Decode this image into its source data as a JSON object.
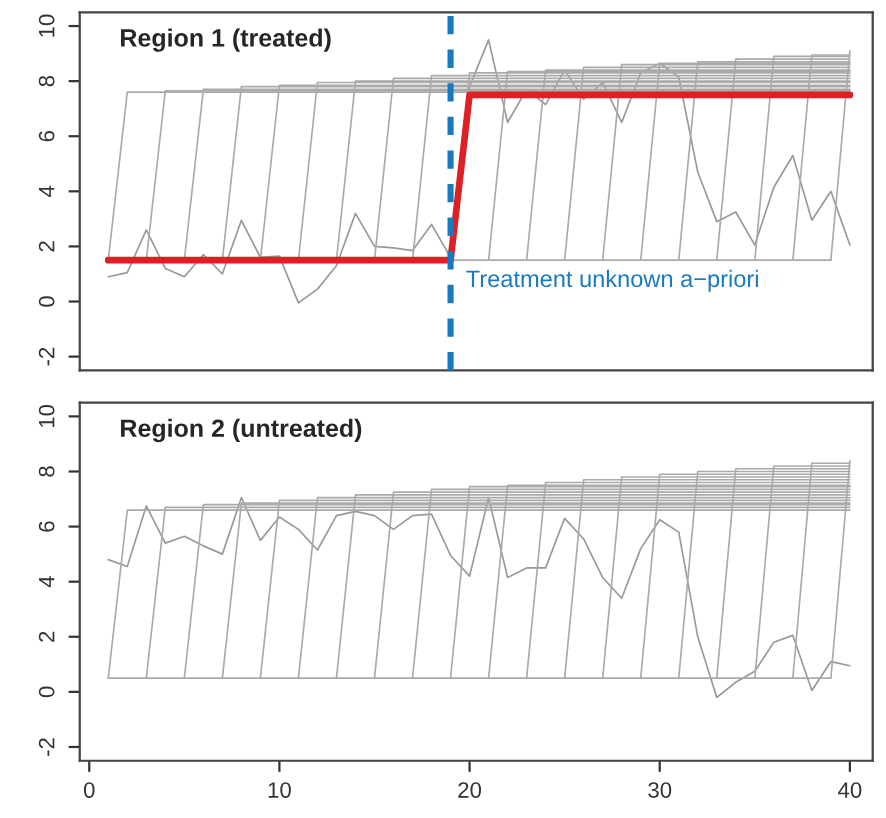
{
  "chart_data": [
    {
      "type": "line",
      "title": "Region 1 (treated)",
      "xlim": [
        -0.5,
        41.2
      ],
      "ylim": [
        -2.5,
        10.5
      ],
      "xticks": [
        0,
        10,
        20,
        30,
        40
      ],
      "yticks": [
        -2,
        0,
        2,
        4,
        6,
        8,
        10
      ],
      "tick_labels": "y",
      "grid": false,
      "line_style": "solid",
      "marker": "none",
      "series": [
        {
          "color": "#999999",
          "x": [
            1,
            2,
            3,
            4,
            5,
            6,
            7,
            8,
            9,
            10,
            11,
            12,
            13,
            14,
            15,
            16,
            17,
            18,
            19,
            20,
            21,
            22,
            23,
            24,
            25,
            26,
            27,
            28,
            29,
            30,
            31,
            32,
            33,
            34,
            35,
            36,
            37,
            38,
            39,
            40
          ],
          "values": [
            0.9,
            1.05,
            2.6,
            1.2,
            0.9,
            1.7,
            1.0,
            2.95,
            1.6,
            1.65,
            -0.05,
            0.45,
            1.3,
            3.2,
            2.0,
            1.95,
            1.85,
            2.8,
            1.6,
            7.8,
            9.5,
            6.5,
            7.7,
            7.15,
            8.4,
            7.35,
            7.95,
            6.5,
            8.3,
            8.65,
            8.15,
            4.7,
            2.9,
            3.25,
            2.05,
            4.15,
            5.3,
            2.95,
            4.0,
            2.05
          ]
        },
        {
          "color": "#aaaaaa",
          "x": [
            1,
            39
          ],
          "values": [
            1.5,
            1.5
          ]
        },
        {
          "color": "#aaaaaa",
          "x": [
            1,
            2,
            40
          ],
          "values": [
            1.5,
            7.6,
            7.6
          ]
        },
        {
          "color": "#aaaaaa",
          "x": [
            3,
            4,
            40
          ],
          "values": [
            1.5,
            7.65,
            7.65
          ]
        },
        {
          "color": "#aaaaaa",
          "x": [
            5,
            6,
            40
          ],
          "values": [
            1.5,
            7.7,
            7.7
          ]
        },
        {
          "color": "#aaaaaa",
          "x": [
            7,
            8,
            40
          ],
          "values": [
            1.5,
            7.8,
            7.8
          ]
        },
        {
          "color": "#aaaaaa",
          "x": [
            9,
            10,
            40
          ],
          "values": [
            1.5,
            7.85,
            7.85
          ]
        },
        {
          "color": "#aaaaaa",
          "x": [
            11,
            12,
            40
          ],
          "values": [
            1.5,
            7.95,
            7.95
          ]
        },
        {
          "color": "#aaaaaa",
          "x": [
            13,
            14,
            40
          ],
          "values": [
            1.5,
            8.0,
            8.0
          ]
        },
        {
          "color": "#aaaaaa",
          "x": [
            15,
            16,
            40
          ],
          "values": [
            1.5,
            8.1,
            8.1
          ]
        },
        {
          "color": "#aaaaaa",
          "x": [
            17,
            18,
            40
          ],
          "values": [
            1.5,
            8.2,
            8.2
          ]
        },
        {
          "color": "#aaaaaa",
          "x": [
            19,
            20,
            40
          ],
          "values": [
            1.5,
            8.3,
            8.3
          ]
        },
        {
          "color": "#aaaaaa",
          "x": [
            21,
            22,
            40
          ],
          "values": [
            1.5,
            8.35,
            8.35
          ]
        },
        {
          "color": "#aaaaaa",
          "x": [
            23,
            24,
            40
          ],
          "values": [
            1.5,
            8.4,
            8.4
          ]
        },
        {
          "color": "#aaaaaa",
          "x": [
            25,
            26,
            40
          ],
          "values": [
            1.5,
            8.5,
            8.5
          ]
        },
        {
          "color": "#aaaaaa",
          "x": [
            27,
            28,
            40
          ],
          "values": [
            1.5,
            8.6,
            8.6
          ]
        },
        {
          "color": "#aaaaaa",
          "x": [
            29,
            30,
            40
          ],
          "values": [
            1.5,
            8.65,
            8.65
          ]
        },
        {
          "color": "#aaaaaa",
          "x": [
            31,
            32,
            40
          ],
          "values": [
            1.5,
            8.7,
            8.7
          ]
        },
        {
          "color": "#aaaaaa",
          "x": [
            33,
            34,
            40
          ],
          "values": [
            1.5,
            8.8,
            8.8
          ]
        },
        {
          "color": "#aaaaaa",
          "x": [
            35,
            36,
            40
          ],
          "values": [
            1.5,
            8.9,
            8.9
          ]
        },
        {
          "color": "#aaaaaa",
          "x": [
            37,
            38,
            40
          ],
          "values": [
            1.5,
            8.95,
            8.95
          ]
        },
        {
          "color": "#aaaaaa",
          "x": [
            39,
            40
          ],
          "values": [
            1.5,
            9.1
          ]
        },
        {
          "color": "#dd1f26",
          "x": [
            1,
            19,
            20,
            40
          ],
          "values": [
            1.5,
            1.5,
            7.5,
            7.5
          ]
        }
      ],
      "ref_lines": [
        {
          "axis": "x",
          "value": 19,
          "label": "Treatment unknown a−priori",
          "color": "#1a7abf",
          "line_style": "dashed"
        }
      ]
    },
    {
      "type": "line",
      "title": "Region 2 (untreated)",
      "xlim": [
        -0.5,
        41.2
      ],
      "ylim": [
        -2.5,
        10.5
      ],
      "xticks": [
        0,
        10,
        20,
        30,
        40
      ],
      "yticks": [
        -2,
        0,
        2,
        4,
        6,
        8,
        10
      ],
      "grid": false,
      "line_style": "solid",
      "marker": "none",
      "series": [
        {
          "color": "#999999",
          "x": [
            1,
            2,
            3,
            4,
            5,
            6,
            7,
            8,
            9,
            10,
            11,
            12,
            13,
            14,
            15,
            16,
            17,
            18,
            19,
            20,
            21,
            22,
            23,
            24,
            25,
            26,
            27,
            28,
            29,
            30,
            31,
            32,
            33,
            34,
            35,
            36,
            37,
            38,
            39,
            40
          ],
          "values": [
            4.8,
            4.55,
            6.75,
            5.4,
            5.65,
            5.3,
            5.0,
            7.05,
            5.5,
            6.35,
            5.9,
            5.15,
            6.4,
            6.55,
            6.4,
            5.9,
            6.4,
            6.45,
            4.95,
            4.2,
            7.05,
            4.15,
            4.5,
            4.5,
            6.3,
            5.55,
            4.15,
            3.4,
            5.2,
            6.25,
            5.8,
            2.0,
            -0.2,
            0.35,
            0.75,
            1.8,
            2.05,
            0.05,
            1.1,
            0.95
          ]
        },
        {
          "color": "#aaaaaa",
          "x": [
            1,
            39
          ],
          "values": [
            0.5,
            0.5
          ]
        },
        {
          "color": "#aaaaaa",
          "x": [
            1,
            2,
            40
          ],
          "values": [
            0.5,
            6.6,
            6.6
          ]
        },
        {
          "color": "#aaaaaa",
          "x": [
            3,
            4,
            40
          ],
          "values": [
            0.5,
            6.7,
            6.7
          ]
        },
        {
          "color": "#aaaaaa",
          "x": [
            5,
            6,
            40
          ],
          "values": [
            0.5,
            6.8,
            6.8
          ]
        },
        {
          "color": "#aaaaaa",
          "x": [
            7,
            8,
            40
          ],
          "values": [
            0.5,
            6.85,
            6.85
          ]
        },
        {
          "color": "#aaaaaa",
          "x": [
            9,
            10,
            40
          ],
          "values": [
            0.5,
            6.95,
            6.95
          ]
        },
        {
          "color": "#aaaaaa",
          "x": [
            11,
            12,
            40
          ],
          "values": [
            0.5,
            7.05,
            7.05
          ]
        },
        {
          "color": "#aaaaaa",
          "x": [
            13,
            14,
            40
          ],
          "values": [
            0.5,
            7.15,
            7.15
          ]
        },
        {
          "color": "#aaaaaa",
          "x": [
            15,
            16,
            40
          ],
          "values": [
            0.5,
            7.25,
            7.25
          ]
        },
        {
          "color": "#aaaaaa",
          "x": [
            17,
            18,
            40
          ],
          "values": [
            0.5,
            7.35,
            7.35
          ]
        },
        {
          "color": "#aaaaaa",
          "x": [
            19,
            20,
            40
          ],
          "values": [
            0.5,
            7.45,
            7.45
          ]
        },
        {
          "color": "#aaaaaa",
          "x": [
            21,
            22,
            40
          ],
          "values": [
            0.5,
            7.5,
            7.5
          ]
        },
        {
          "color": "#aaaaaa",
          "x": [
            23,
            24,
            40
          ],
          "values": [
            0.5,
            7.6,
            7.6
          ]
        },
        {
          "color": "#aaaaaa",
          "x": [
            25,
            26,
            40
          ],
          "values": [
            0.5,
            7.7,
            7.7
          ]
        },
        {
          "color": "#aaaaaa",
          "x": [
            27,
            28,
            40
          ],
          "values": [
            0.5,
            7.8,
            7.8
          ]
        },
        {
          "color": "#aaaaaa",
          "x": [
            29,
            30,
            40
          ],
          "values": [
            0.5,
            7.9,
            7.9
          ]
        },
        {
          "color": "#aaaaaa",
          "x": [
            31,
            32,
            40
          ],
          "values": [
            0.5,
            8.0,
            8.0
          ]
        },
        {
          "color": "#aaaaaa",
          "x": [
            33,
            34,
            40
          ],
          "values": [
            0.5,
            8.1,
            8.1
          ]
        },
        {
          "color": "#aaaaaa",
          "x": [
            35,
            36,
            40
          ],
          "values": [
            0.5,
            8.2,
            8.2
          ]
        },
        {
          "color": "#aaaaaa",
          "x": [
            37,
            38,
            40
          ],
          "values": [
            0.5,
            8.3,
            8.3
          ]
        },
        {
          "color": "#aaaaaa",
          "x": [
            39,
            40
          ],
          "values": [
            0.5,
            8.4
          ]
        }
      ]
    }
  ]
}
